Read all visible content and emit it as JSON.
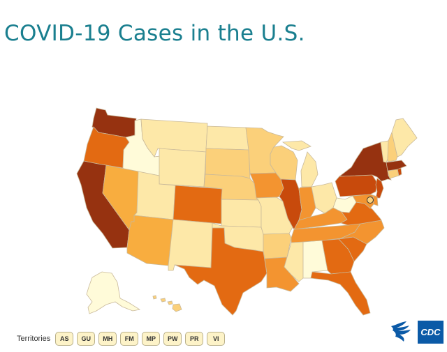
{
  "title": "COVID-19 Cases in the U.S.",
  "territories": {
    "label": "Territories",
    "items": [
      "AS",
      "GU",
      "MH",
      "FM",
      "MP",
      "PW",
      "PR",
      "VI"
    ]
  },
  "logos": {
    "cdc": "CDC",
    "hhs": "HHS eagle logo"
  },
  "colors": {
    "lightest": "#fffbd9",
    "light": "#fde8a8",
    "light_mid": "#fbd07a",
    "mid": "#f8ad3f",
    "mid_dark": "#f39430",
    "dark": "#e36a12",
    "darker": "#c84a0c",
    "darkest": "#963210"
  }
}
